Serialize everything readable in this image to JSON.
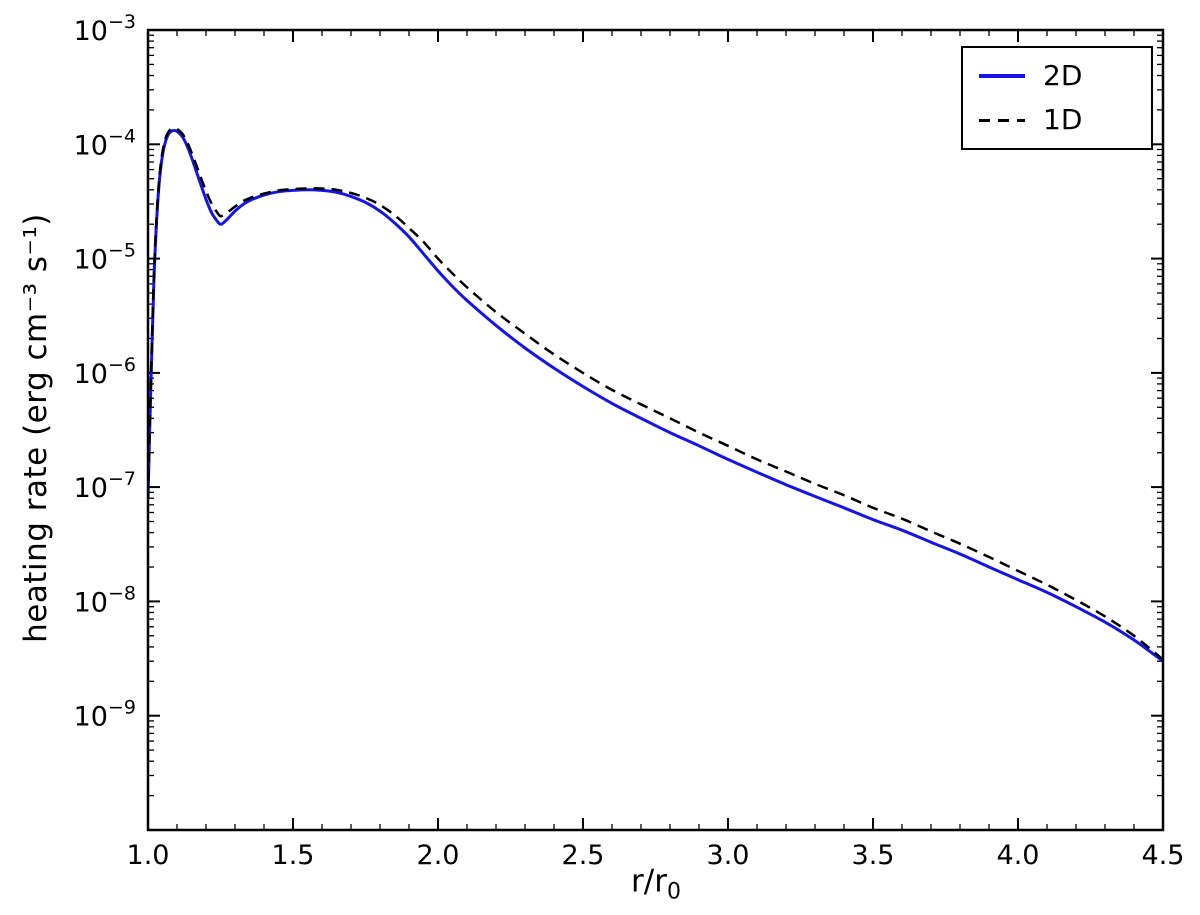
{
  "figure": {
    "xlabel_main": "r/r",
    "xlabel_sub": "0",
    "ylabel": "heating rate (erg cm⁻³ s⁻¹)"
  },
  "chart_data": {
    "type": "line",
    "title": "",
    "xlabel": "r/r_0",
    "ylabel": "heating rate (erg cm^-3 s^-1)",
    "y_scale": "log",
    "grid": false,
    "legend_position": "upper right",
    "xlim": [
      1.0,
      4.5
    ],
    "ylim_exponents": [
      -10,
      -3
    ],
    "x_ticks": [
      1.0,
      1.5,
      2.0,
      2.5,
      3.0,
      3.5,
      4.0,
      4.5
    ],
    "x_tick_labels": [
      "1.0",
      "1.5",
      "2.0",
      "2.5",
      "3.0",
      "3.5",
      "4.0",
      "4.5"
    ],
    "y_tick_exponents": [
      -3,
      -4,
      -5,
      -6,
      -7,
      -8,
      -9
    ],
    "x": [
      1.0,
      1.01,
      1.02,
      1.03,
      1.04,
      1.05,
      1.06,
      1.07,
      1.08,
      1.09,
      1.1,
      1.12,
      1.14,
      1.16,
      1.18,
      1.2,
      1.22,
      1.24,
      1.25,
      1.26,
      1.28,
      1.3,
      1.33,
      1.36,
      1.4,
      1.45,
      1.5,
      1.55,
      1.6,
      1.65,
      1.7,
      1.75,
      1.8,
      1.85,
      1.9,
      1.95,
      2.0,
      2.05,
      2.1,
      2.2,
      2.3,
      2.4,
      2.5,
      2.6,
      2.7,
      2.8,
      2.9,
      3.0,
      3.1,
      3.2,
      3.3,
      3.4,
      3.5,
      3.6,
      3.7,
      3.8,
      3.9,
      4.0,
      4.1,
      4.2,
      4.3,
      4.4,
      4.5
    ],
    "series": [
      {
        "name": "2D",
        "color": "#1414e6",
        "style": "solid",
        "values": [
          8e-08,
          8e-07,
          6e-06,
          2.2e-05,
          5e-05,
          8e-05,
          0.000105,
          0.000122,
          0.00013,
          0.000132,
          0.00013,
          0.000115,
          9e-05,
          6.5e-05,
          4.6e-05,
          3.3e-05,
          2.5e-05,
          2.1e-05,
          2e-05,
          2.05e-05,
          2.3e-05,
          2.6e-05,
          3e-05,
          3.3e-05,
          3.6e-05,
          3.85e-05,
          3.95e-05,
          4e-05,
          3.95e-05,
          3.8e-05,
          3.5e-05,
          3.1e-05,
          2.6e-05,
          2.05e-05,
          1.55e-05,
          1.1e-05,
          7.8e-06,
          5.7e-06,
          4.3e-06,
          2.6e-06,
          1.65e-06,
          1.1e-06,
          7.6e-07,
          5.4e-07,
          4e-07,
          3e-07,
          2.3e-07,
          1.75e-07,
          1.35e-07,
          1.05e-07,
          8.3e-08,
          6.6e-08,
          5.2e-08,
          4.2e-08,
          3.3e-08,
          2.6e-08,
          2e-08,
          1.55e-08,
          1.2e-08,
          9e-09,
          6.6e-09,
          4.6e-09,
          3e-09
        ]
      },
      {
        "name": "1D",
        "color": "#000000",
        "style": "dashed",
        "values": [
          8e-08,
          8.5e-07,
          6.5e-06,
          2.4e-05,
          5.4e-05,
          8.6e-05,
          0.000112,
          0.000128,
          0.000136,
          0.000138,
          0.000136,
          0.000122,
          9.8e-05,
          7.3e-05,
          5.3e-05,
          3.9e-05,
          3e-05,
          2.5e-05,
          2.35e-05,
          2.4e-05,
          2.6e-05,
          2.85e-05,
          3.2e-05,
          3.45e-05,
          3.7e-05,
          3.95e-05,
          4.05e-05,
          4.1e-05,
          4.1e-05,
          4e-05,
          3.75e-05,
          3.4e-05,
          2.95e-05,
          2.4e-05,
          1.85e-05,
          1.4e-05,
          1e-05,
          7.4e-06,
          5.6e-06,
          3.4e-06,
          2.2e-06,
          1.45e-06,
          1e-06,
          7.1e-07,
          5.3e-07,
          4e-07,
          3e-07,
          2.3e-07,
          1.75e-07,
          1.37e-07,
          1.07e-07,
          8.5e-08,
          6.6e-08,
          5.3e-08,
          4.1e-08,
          3.2e-08,
          2.45e-08,
          1.85e-08,
          1.4e-08,
          1.03e-08,
          7.4e-09,
          5e-09,
          3.1e-09
        ]
      }
    ]
  }
}
